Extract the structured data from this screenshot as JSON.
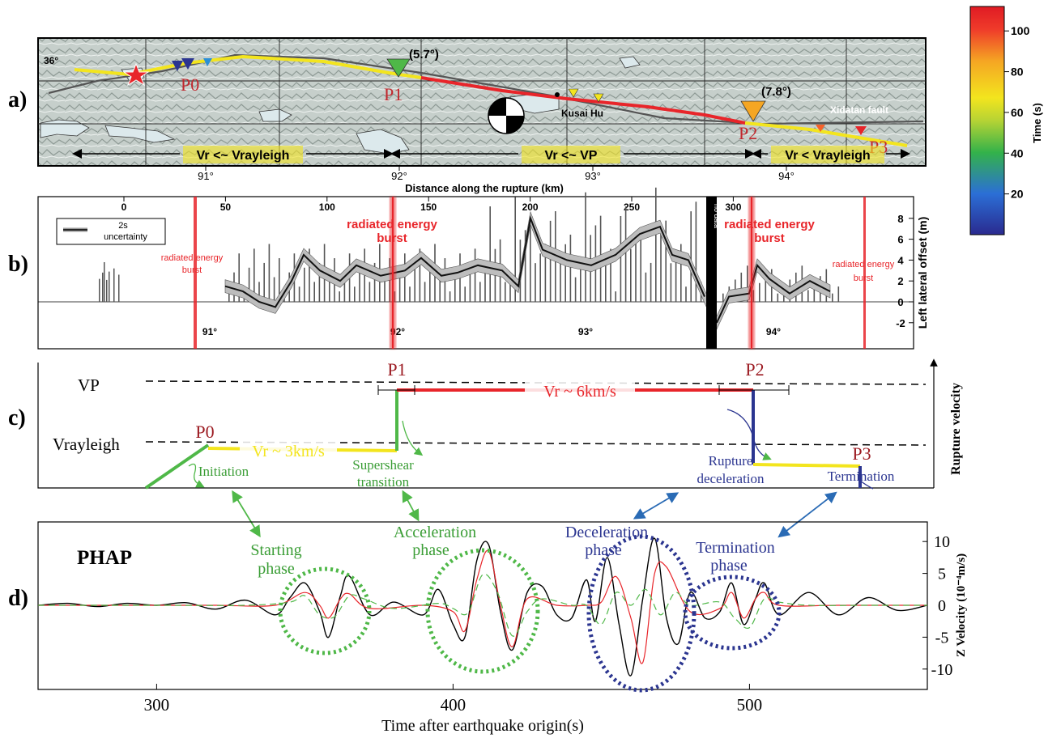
{
  "colors": {
    "red": "#e8252a",
    "yellow": "#f3e51e",
    "green": "#4fb848",
    "navy": "#2b3590",
    "darkred": "#9c1b22",
    "blue": "#2a6bb5",
    "orange": "#f5a623"
  },
  "panel_labels": {
    "a": "a)",
    "b": "b)",
    "c": "c)",
    "d": "d)"
  },
  "colorbar": {
    "label": "Time (s)",
    "ticks": [
      {
        "value": 20,
        "label": "20"
      },
      {
        "value": 40,
        "label": "40"
      },
      {
        "value": 60,
        "label": "60"
      },
      {
        "value": 80,
        "label": "80"
      },
      {
        "value": 100,
        "label": "100"
      }
    ],
    "range": [
      0,
      112
    ]
  },
  "panel_a": {
    "lat_label": "36°",
    "lon_ticks": [
      {
        "value": 91,
        "label": "91°"
      },
      {
        "value": 92,
        "label": "92°"
      },
      {
        "value": 93,
        "label": "93°"
      },
      {
        "value": 94,
        "label": "94°"
      }
    ],
    "points": [
      "P0",
      "P1",
      "P2",
      "P3"
    ],
    "angle_labels": [
      "(5.7°)",
      "(7.8°)"
    ],
    "places": [
      "Kusai Hu",
      "Xidatan fault"
    ],
    "regimes": [
      "Vr <~ Vrayleigh",
      "Vr <~ VP",
      "Vr < Vrayleigh"
    ],
    "xlabel": "Distance along the rupture (km)"
  },
  "panel_b": {
    "ylabel": "Left lateral offset (m)",
    "legend": [
      "2s",
      "uncertainty"
    ],
    "dist_ticks": [
      {
        "value": 0,
        "label": "0"
      },
      {
        "value": 50,
        "label": "50"
      },
      {
        "value": 100,
        "label": "100"
      },
      {
        "value": 150,
        "label": "150"
      },
      {
        "value": 200,
        "label": "200"
      },
      {
        "value": 250,
        "label": "250"
      },
      {
        "value": 300,
        "label": "300"
      }
    ],
    "y_ticks": [
      {
        "value": -2,
        "label": "-2"
      },
      {
        "value": 0,
        "label": "0"
      },
      {
        "value": 2,
        "label": "2"
      },
      {
        "value": 4,
        "label": "4"
      },
      {
        "value": 6,
        "label": "6"
      },
      {
        "value": 8,
        "label": "8"
      }
    ],
    "lon_labels": [
      {
        "value": 91,
        "label": "91°"
      },
      {
        "value": 92,
        "label": "92°"
      },
      {
        "value": 93,
        "label": "93°"
      },
      {
        "value": 94,
        "label": "94°"
      }
    ],
    "burst_label_l1": "radiated energy",
    "burst_label_l2": "burst",
    "no_data": "no data"
  },
  "panel_c": {
    "ylabel": "Rupture velocity",
    "levels": [
      "VP",
      "Vrayleigh"
    ],
    "points": [
      "P0",
      "P1",
      "P2",
      "P3"
    ],
    "speed_labels": [
      "Vr ~ 3km/s",
      "Vr ~ 6km/s"
    ],
    "stage_initiation": "Initiation",
    "stage_supershear": [
      "Supershear",
      "transition"
    ],
    "stage_deceleration": [
      "Rupture",
      "deceleration"
    ],
    "stage_termination": "Termination"
  },
  "panel_d": {
    "station": "PHAP",
    "phases": [
      [
        "Starting",
        "phase"
      ],
      [
        "Acceleration",
        "phase"
      ],
      [
        "Deceleration",
        "phase"
      ],
      [
        "Termination",
        "phase"
      ]
    ]
  },
  "chart_data": {
    "type": "line",
    "xlabel": "Time after earthquake origin(s)",
    "ylabel": "Z Velocity (10⁻⁴m/s)",
    "xlim": [
      260,
      560
    ],
    "ylim": [
      -12.5,
      12.5
    ],
    "x_ticks": [
      300,
      400,
      500
    ],
    "y_ticks": [
      -10,
      -5,
      0,
      5,
      10
    ],
    "series": [
      {
        "color": "#000000",
        "x": [
          260,
          270,
          280,
          290,
          300,
          310,
          320,
          330,
          340,
          345,
          350,
          355,
          358,
          362,
          365,
          372,
          380,
          390,
          395,
          400,
          404,
          408,
          412,
          416,
          420,
          425,
          430,
          435,
          440,
          445,
          448,
          452,
          456,
          460,
          464,
          468,
          472,
          476,
          480,
          485,
          490,
          494,
          498,
          502,
          505,
          510,
          520,
          530,
          540,
          550,
          560
        ],
        "values": [
          0,
          0.3,
          -0.2,
          0.3,
          0,
          0.4,
          -0.6,
          0.8,
          -1.5,
          1.2,
          3.5,
          -1,
          -5,
          1.5,
          4.6,
          -1.5,
          0.5,
          -1.5,
          2.5,
          -3,
          -5,
          7,
          9.5,
          -1,
          -7,
          2,
          3,
          -1.5,
          -2,
          4,
          -2.5,
          7.5,
          -3,
          -11,
          1,
          10.5,
          -2,
          -6,
          2,
          -2,
          -1,
          3.5,
          -3,
          1,
          3.5,
          -1.5,
          2,
          -1.5,
          1.2,
          -0.8,
          0
        ]
      },
      {
        "color": "#e8252a",
        "x": [
          260,
          300,
          320,
          340,
          350,
          355,
          358,
          362,
          365,
          372,
          390,
          400,
          404,
          408,
          412,
          416,
          420,
          425,
          435,
          445,
          450,
          455,
          460,
          464,
          468,
          472,
          480,
          490,
          494,
          498,
          502,
          505,
          510,
          530,
          560
        ],
        "values": [
          0,
          0,
          0,
          0,
          2,
          0,
          -2,
          1,
          1.8,
          -0.5,
          0,
          -1,
          -4,
          4,
          8.5,
          0,
          -6.5,
          1,
          0,
          0,
          0.5,
          4.5,
          -2,
          -9,
          5,
          6,
          -1,
          -0.5,
          2,
          -2,
          1,
          2,
          0,
          0,
          0
        ]
      },
      {
        "color": "#4fb848",
        "x": [
          260,
          300,
          330,
          345,
          350,
          355,
          360,
          365,
          370,
          380,
          395,
          400,
          405,
          410,
          415,
          420,
          425,
          430,
          440,
          445,
          450,
          455,
          460,
          465,
          470,
          475,
          480,
          490,
          495,
          500,
          505,
          510,
          520,
          540,
          560
        ],
        "values": [
          0,
          0,
          0,
          0.5,
          1.5,
          -1.5,
          -1.8,
          1.5,
          1,
          -0.5,
          0.3,
          -0.5,
          -1.2,
          4.8,
          2,
          -4.8,
          -1,
          1,
          0,
          0,
          -3,
          2,
          0,
          2.5,
          -1.5,
          2,
          0,
          0.5,
          -2,
          -3.5,
          1,
          0.5,
          0,
          0,
          0
        ]
      }
    ]
  }
}
